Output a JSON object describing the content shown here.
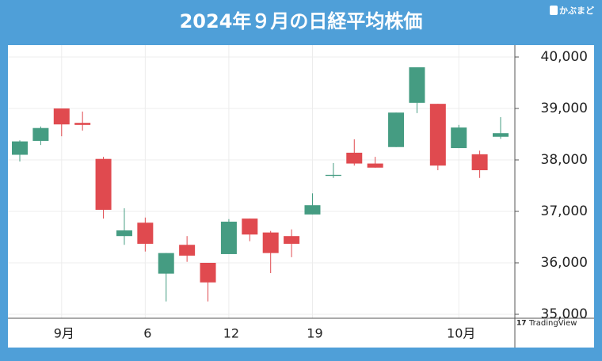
{
  "chart_data": {
    "type": "candlestick",
    "title": "2024年９月の日経平均株価",
    "logo": "かぶまど",
    "watermark": "TradingView",
    "categories": [
      null,
      null,
      "9月",
      null,
      null,
      null,
      "6",
      null,
      null,
      null,
      "12",
      null,
      null,
      null,
      "19",
      null,
      null,
      null,
      null,
      null,
      null,
      "10月",
      null,
      null
    ],
    "open": [
      38100,
      38370,
      39000,
      38720,
      38020,
      36520,
      36780,
      35790,
      36350,
      36000,
      36170,
      36860,
      36590,
      36520,
      36940,
      37690,
      38140,
      37930,
      38250,
      39110,
      39090,
      38230,
      38110,
      38450
    ],
    "high": [
      38380,
      38650,
      39000,
      38940,
      38060,
      37060,
      36880,
      36190,
      36520,
      36000,
      36850,
      36860,
      36620,
      36650,
      37350,
      37940,
      38400,
      38060,
      38920,
      39800,
      39090,
      38680,
      38180,
      38830
    ],
    "low": [
      37970,
      38290,
      38460,
      38570,
      36860,
      36350,
      36220,
      35250,
      36020,
      35250,
      36170,
      36420,
      35800,
      36110,
      36940,
      37650,
      37890,
      37850,
      38250,
      38910,
      37800,
      38230,
      37650,
      38410
    ],
    "close": [
      38360,
      38620,
      38690,
      38680,
      37030,
      36630,
      36370,
      36190,
      36140,
      35620,
      36800,
      36550,
      36190,
      36370,
      37120,
      37710,
      37930,
      37850,
      38920,
      39800,
      37890,
      38630,
      37800,
      38520
    ],
    "up_color": "#459c82",
    "down_color": "#e04a4f",
    "ylim": [
      34923,
      40231
    ],
    "yticks": [
      {
        "value": 35000,
        "label": "35,000"
      },
      {
        "value": 36000,
        "label": "36,000"
      },
      {
        "value": 37000,
        "label": "37,000"
      },
      {
        "value": 38000,
        "label": "38,000"
      },
      {
        "value": 39000,
        "label": "39,000"
      },
      {
        "value": 40000,
        "label": "40,000"
      }
    ],
    "grid": true
  }
}
